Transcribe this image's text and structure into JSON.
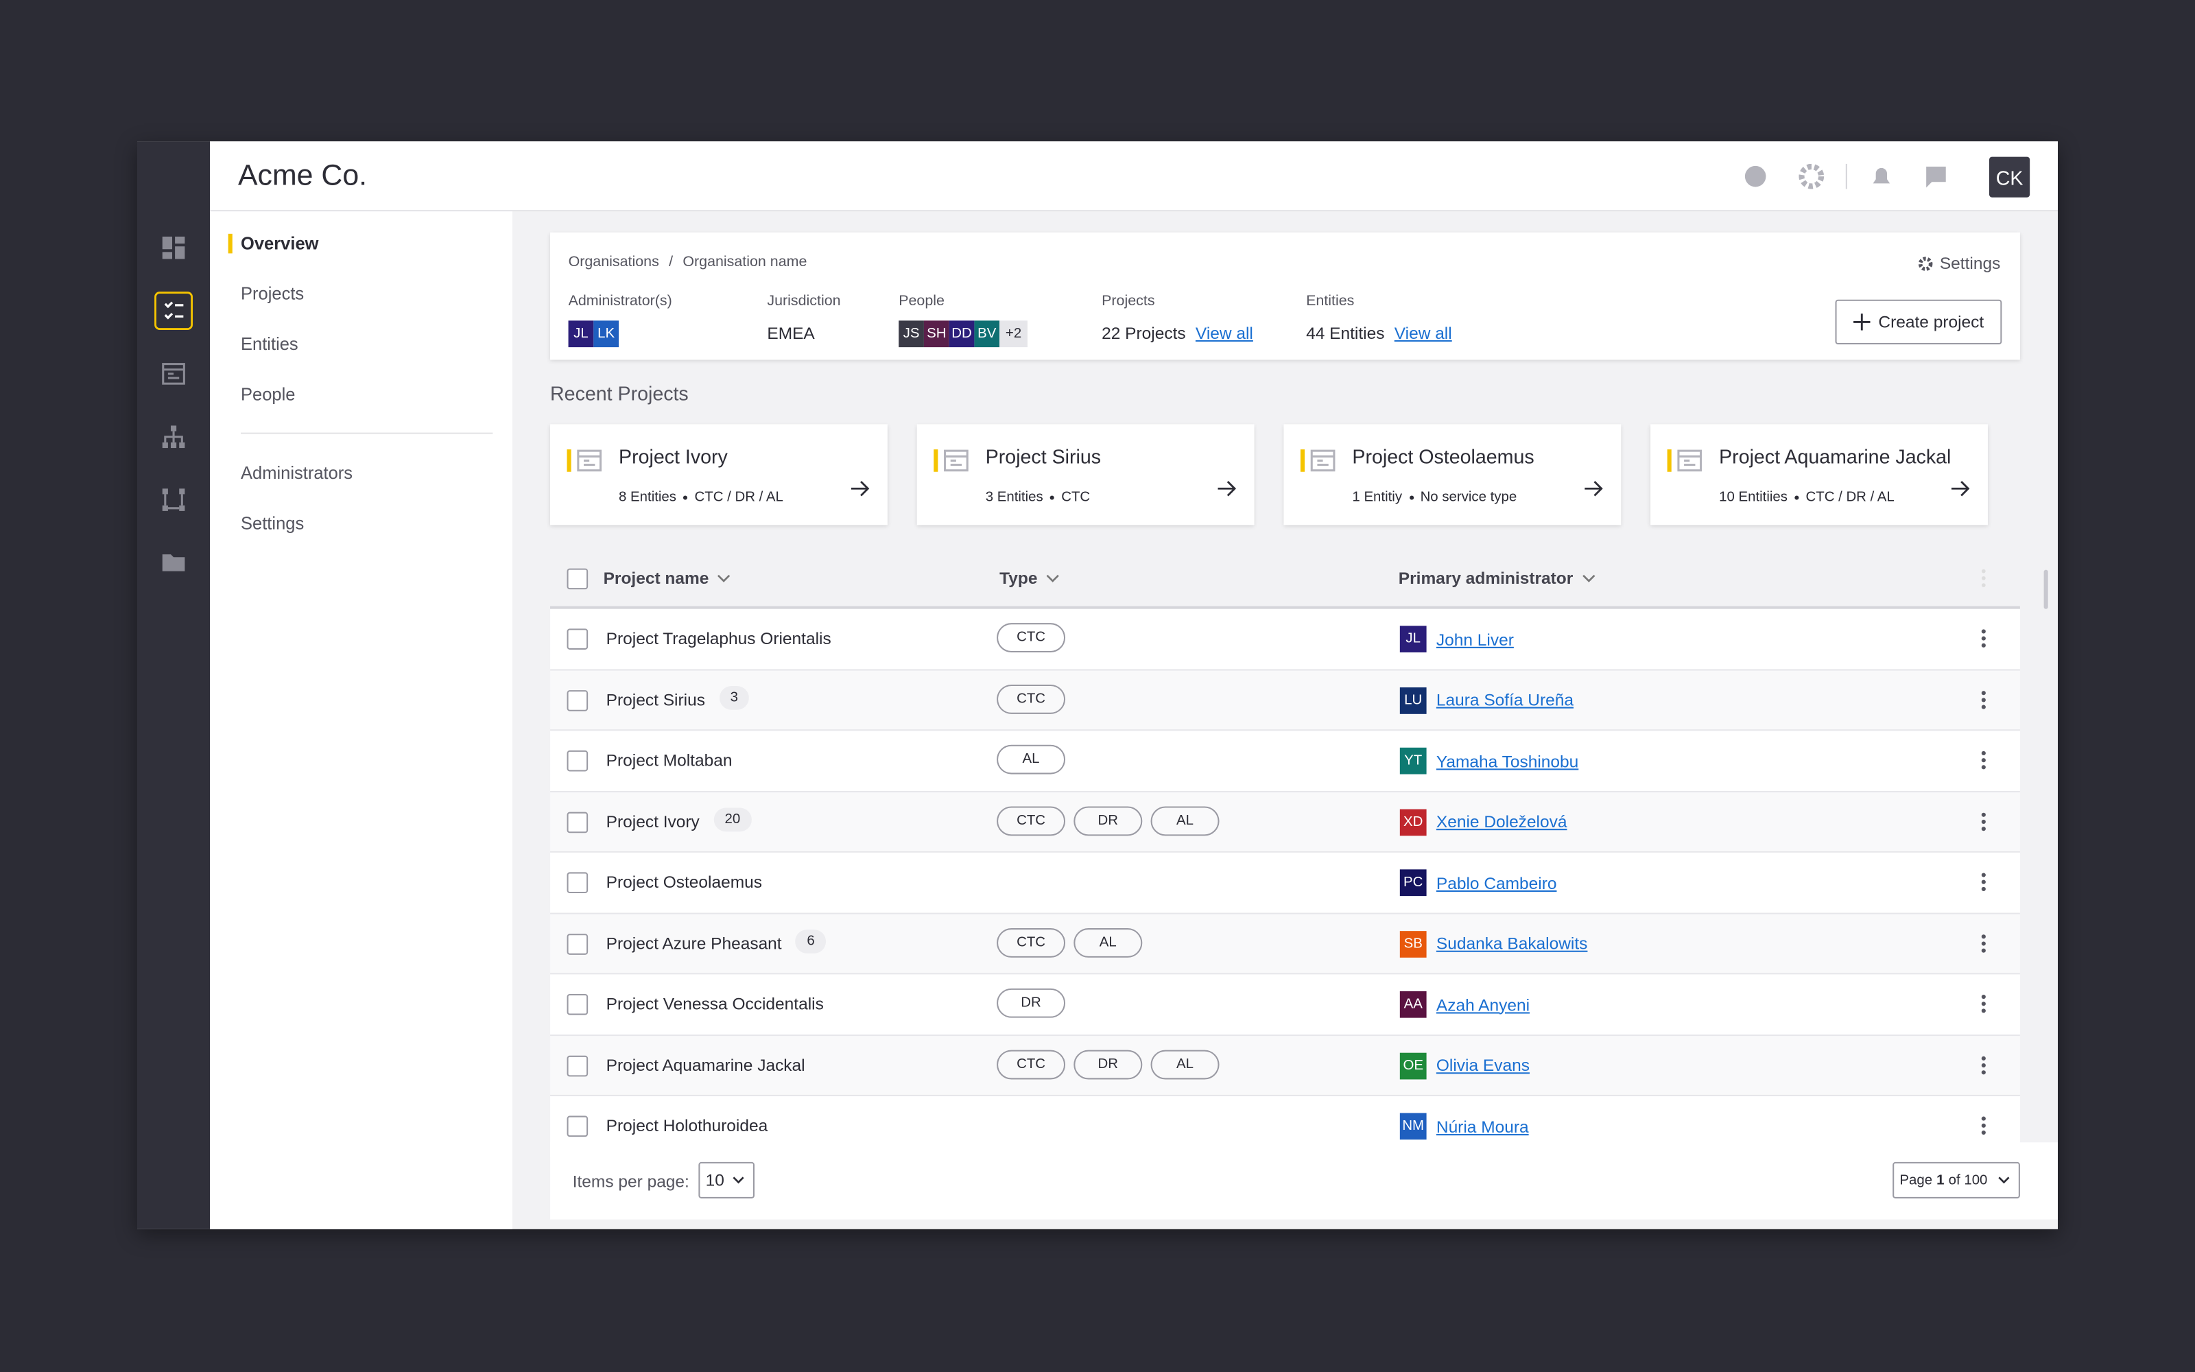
{
  "header": {
    "title": "Acme Co.",
    "user_initials": "CK"
  },
  "nav": {
    "items": [
      "Overview",
      "Projects",
      "Entities",
      "People"
    ],
    "secondary": [
      "Administrators",
      "Settings"
    ]
  },
  "breadcrumb": {
    "items": [
      "Organisations",
      "Organisation name"
    ],
    "separator": "/"
  },
  "settings_label": "Settings",
  "summary": {
    "administrators": {
      "label": "Administrator(s)",
      "avatars": [
        {
          "initials": "JL",
          "color": "#2b1e7a"
        },
        {
          "initials": "LK",
          "color": "#1f5fbf"
        }
      ]
    },
    "jurisdiction": {
      "label": "Jurisdiction",
      "value": "EMEA"
    },
    "people": {
      "label": "People",
      "avatars": [
        {
          "initials": "JS",
          "color": "#3a3a46"
        },
        {
          "initials": "SH",
          "color": "#5a1f4a"
        },
        {
          "initials": "DD",
          "color": "#2b1e7a"
        },
        {
          "initials": "BV",
          "color": "#0e6f72"
        }
      ],
      "more": "+2"
    },
    "projects": {
      "label": "Projects",
      "value": "22 Projects",
      "link": "View all"
    },
    "entities": {
      "label": "Entities",
      "value": "44 Entities",
      "link": "View all"
    },
    "create_button": "Create project"
  },
  "recent": {
    "title": "Recent Projects",
    "cards": [
      {
        "name": "Project Ivory",
        "entities": "8 Entities",
        "types": "CTC / DR / AL"
      },
      {
        "name": "Project Sirius",
        "entities": "3 Entities",
        "types": "CTC"
      },
      {
        "name": "Project Osteolaemus",
        "entities": "1 Entitiy",
        "types": "No service type"
      },
      {
        "name": "Project Aquamarine Jackal",
        "entities": "10 Entitiies",
        "types": "CTC / DR / AL"
      }
    ]
  },
  "table": {
    "columns": [
      "Project name",
      "Type",
      "Primary administrator"
    ],
    "rows": [
      {
        "name": "Project Tragelaphus Orientalis",
        "types": [
          "CTC"
        ],
        "admin": {
          "initials": "JL",
          "name": "John Liver",
          "color": "#2b1e7a"
        }
      },
      {
        "name": "Project Sirius",
        "count": 3,
        "types": [
          "CTC"
        ],
        "admin": {
          "initials": "LU",
          "name": "Laura Sofía Ureña",
          "color": "#12306e"
        }
      },
      {
        "name": "Project Moltaban",
        "types": [
          "AL"
        ],
        "admin": {
          "initials": "YT",
          "name": "Yamaha Toshinobu",
          "color": "#0e7a72"
        }
      },
      {
        "name": "Project Ivory",
        "count": 20,
        "types": [
          "CTC",
          "DR",
          "AL"
        ],
        "admin": {
          "initials": "XD",
          "name": "Xenie Doleželová",
          "color": "#c0262d"
        }
      },
      {
        "name": "Project Osteolaemus",
        "types": [],
        "admin": {
          "initials": "PC",
          "name": "Pablo Cambeiro",
          "color": "#15135e"
        }
      },
      {
        "name": "Project Azure Pheasant",
        "count": 6,
        "types": [
          "CTC",
          "AL"
        ],
        "admin": {
          "initials": "SB",
          "name": "Sudanka Bakalowits",
          "color": "#e8580c"
        }
      },
      {
        "name": "Project Venessa Occidentalis",
        "types": [
          "DR"
        ],
        "admin": {
          "initials": "AA",
          "name": "Azah Anyeni",
          "color": "#5a1240"
        }
      },
      {
        "name": "Project Aquamarine Jackal",
        "types": [
          "CTC",
          "DR",
          "AL"
        ],
        "admin": {
          "initials": "OE",
          "name": "Olivia Evans",
          "color": "#1e8a3a"
        }
      },
      {
        "name": "Project Holothuroidea",
        "types": [],
        "admin": {
          "initials": "NM",
          "name": "Núria Moura",
          "color": "#1f5fbf"
        }
      }
    ]
  },
  "pagination": {
    "items_label": "Items per page:",
    "per_page": 10,
    "page_prefix": "Page",
    "page": 1,
    "page_suffix": "of 100"
  }
}
